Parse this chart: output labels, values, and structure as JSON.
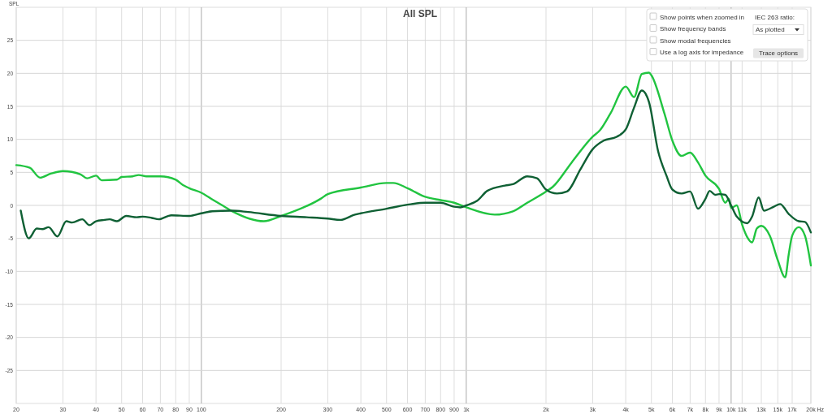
{
  "chart_data": {
    "type": "line",
    "title": "All SPL",
    "ylabel": "SPL",
    "log": "x",
    "grid": true,
    "xlim": [
      20,
      20000
    ],
    "ylim": [
      -30,
      30
    ],
    "yticks": [
      -25,
      -20,
      -15,
      -10,
      -5,
      0,
      5,
      10,
      15,
      20,
      25
    ],
    "xticks": [
      20,
      30,
      40,
      50,
      60,
      70,
      80,
      90,
      100,
      200,
      300,
      400,
      500,
      600,
      700,
      800,
      900,
      {
        "value": 1000,
        "label": "1k"
      },
      {
        "value": 2000,
        "label": "2k"
      },
      {
        "value": 3000,
        "label": "3k"
      },
      {
        "value": 4000,
        "label": "4k"
      },
      {
        "value": 5000,
        "label": "5k"
      },
      {
        "value": 6000,
        "label": "6k"
      },
      {
        "value": 7000,
        "label": "7k"
      },
      {
        "value": 8000,
        "label": "8k"
      },
      {
        "value": 9000,
        "label": "9k"
      },
      {
        "value": 10000,
        "label": "10k"
      },
      {
        "value": 11000,
        "label": "11k"
      },
      {
        "value": 13000,
        "label": "13k"
      },
      {
        "value": 15000,
        "label": "15k"
      },
      {
        "value": 17000,
        "label": "17k"
      },
      {
        "value": 20000,
        "label": "20k"
      }
    ],
    "xlabel": "Hz",
    "annotations": [
      "Show points when zoomed in",
      "IEC 263 ratio:",
      "Show frequency bands",
      "As plotted",
      "Show modal frequencies",
      "Use a log axis for impedance",
      "Trace options"
    ],
    "series": [
      {
        "color": "#21c440",
        "x": [
          20,
          22.5,
          24.6,
          27,
          30,
          35,
          37,
          40,
          42,
          48,
          50,
          55,
          58,
          62,
          70,
          80,
          85,
          90,
          100,
          110,
          120,
          131,
          172,
          200,
          282,
          300,
          400,
          500,
          530,
          600,
          700,
          800,
          900,
          1000,
          1280,
          1500,
          1700,
          2000,
          2120,
          2500,
          3000,
          3200,
          3500,
          4000,
          4300,
          4600,
          4900,
          5000,
          5600,
          6000,
          6500,
          7000,
          7500,
          8000,
          9000,
          9500,
          9800,
          10000,
          10500,
          11000,
          11500,
          12000,
          12500,
          13000,
          14000,
          15000,
          16000,
          16500,
          17000,
          18000,
          19000,
          20000
        ],
        "values": [
          6.1,
          5.7,
          4.2,
          4.8,
          5.2,
          4.7,
          4.1,
          4.5,
          3.8,
          3.9,
          4.3,
          4.4,
          4.6,
          4.4,
          4.4,
          3.9,
          3.1,
          2.6,
          1.9,
          0.9,
          0,
          -0.9,
          -2.4,
          -1.6,
          1.0,
          1.7,
          2.7,
          3.4,
          3.4,
          2.6,
          1.3,
          0.8,
          0.4,
          -0.3,
          -1.4,
          -0.9,
          0.4,
          2.1,
          2.8,
          6.5,
          10.4,
          11.4,
          13.9,
          18.0,
          16.4,
          19.9,
          20.1,
          19.7,
          13.9,
          9.8,
          7.5,
          8.0,
          6.5,
          4.5,
          2.5,
          0.4,
          1.0,
          -0.4,
          0,
          -2.9,
          -4.8,
          -5.6,
          -3.5,
          -3.1,
          -4.6,
          -8.3,
          -10.9,
          -7.4,
          -4.6,
          -3.3,
          -4.6,
          -9.1
        ]
      },
      {
        "color": "#0f6034",
        "x": [
          20.8,
          22.3,
          23.9,
          25.1,
          26.5,
          28.6,
          30.9,
          32.5,
          35.5,
          37.8,
          40,
          43,
          45,
          48,
          52,
          57,
          60,
          65,
          69,
          77,
          90,
          100,
          110,
          130,
          150,
          200,
          250,
          300,
          335,
          380,
          400,
          500,
          600,
          700,
          800,
          900,
          950,
          1000,
          1100,
          1200,
          1400,
          1500,
          1700,
          1850,
          2000,
          2200,
          2400,
          2700,
          3000,
          3300,
          3700,
          4000,
          4300,
          4600,
          4900,
          5300,
          5700,
          6000,
          6500,
          7000,
          7500,
          8000,
          8300,
          8700,
          9000,
          9500,
          10000,
          10500,
          11500,
          12000,
          12700,
          13300,
          14500,
          15300,
          16500,
          18000,
          19000,
          20000
        ],
        "values": [
          -0.8,
          -5.0,
          -3.5,
          -3.6,
          -3.3,
          -4.7,
          -2.4,
          -2.6,
          -2.1,
          -3.0,
          -2.4,
          -2.2,
          -2.1,
          -2.4,
          -1.6,
          -1.8,
          -1.7,
          -1.9,
          -2.1,
          -1.5,
          -1.6,
          -1.2,
          -0.9,
          -0.8,
          -1.0,
          -1.6,
          -1.8,
          -2.0,
          -2.2,
          -1.4,
          -1.2,
          -0.5,
          0.1,
          0.4,
          0.4,
          -0.2,
          -0.3,
          0,
          0.7,
          2.2,
          3.0,
          3.2,
          4.4,
          4.1,
          2.4,
          1.8,
          2.1,
          5.5,
          8.5,
          9.8,
          10.4,
          11.5,
          14.8,
          17.4,
          15.6,
          8.2,
          4.5,
          2.4,
          1.8,
          2.1,
          -0.5,
          1.0,
          2.2,
          1.6,
          1.7,
          1.6,
          0,
          -1.7,
          -2.7,
          -1.7,
          1.2,
          -0.8,
          -0.2,
          0.2,
          -1.3,
          -2.4,
          -2.5,
          -4.1
        ]
      }
    ]
  }
}
